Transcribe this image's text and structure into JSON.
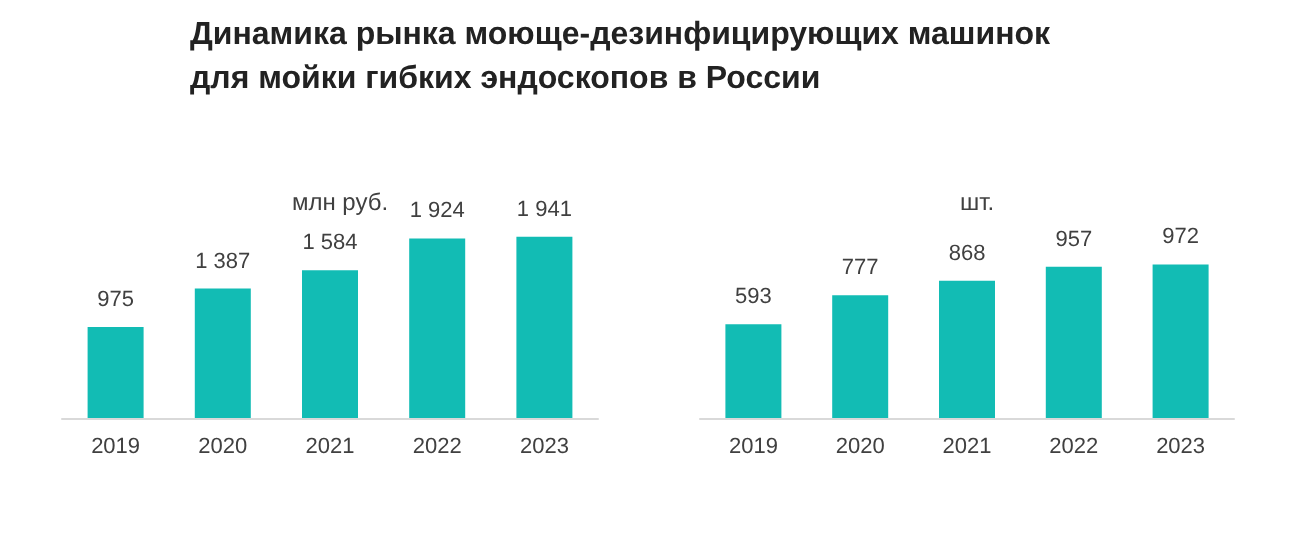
{
  "chart_data": [
    {
      "type": "bar",
      "title": "Динамика рынка моюще-дезинфицирующих машинок\nдля мойки гибких эндоскопов в России",
      "subtitle": "млн руб.",
      "categories": [
        "2019",
        "2020",
        "2021",
        "2022",
        "2023"
      ],
      "values": [
        975,
        1387,
        1584,
        1924,
        1941
      ],
      "color": "#12bcb4",
      "data_labels": true,
      "value_labels": [
        "975",
        "1 387",
        "1 584",
        "1 924",
        "1 941"
      ]
    },
    {
      "type": "bar",
      "subtitle": "шт.",
      "categories": [
        "2019",
        "2020",
        "2021",
        "2022",
        "2023"
      ],
      "values": [
        593,
        777,
        868,
        957,
        972
      ],
      "color": "#12bcb4",
      "data_labels": true,
      "value_labels": [
        "593",
        "777",
        "868",
        "957",
        "972"
      ]
    }
  ]
}
